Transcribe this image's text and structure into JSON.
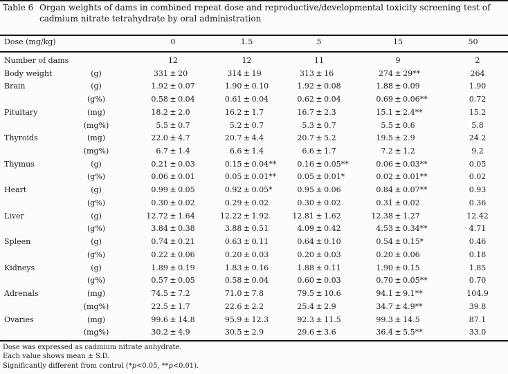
{
  "title": {
    "label": "Table 6",
    "line1": "Organ weights of dams in combined repeat dose and reproductive/developmental toxicity screening test of",
    "line2": "cadmium nitrate tetrahydrate by oral administration"
  },
  "table": {
    "dose_header": "Dose (mg/kg)",
    "pm": "±",
    "doses": [
      "0",
      "1.5",
      "5",
      "15",
      "50"
    ],
    "rows": [
      {
        "label": "Number of dams",
        "unit": "",
        "cells": [
          {
            "v": "12"
          },
          {
            "v": "12"
          },
          {
            "v": "11"
          },
          {
            "v": "9"
          },
          {
            "v": "2"
          }
        ]
      },
      {
        "label": "Body weight",
        "unit": "(g)",
        "cells": [
          {
            "m": "331",
            "s": "20"
          },
          {
            "m": "314",
            "s": "19"
          },
          {
            "m": "313",
            "s": "16"
          },
          {
            "m": "274",
            "s": "29",
            "sig": "**"
          },
          {
            "v": "264"
          }
        ]
      },
      {
        "label": "Brain",
        "unit": "(g)",
        "cells": [
          {
            "m": "1.92",
            "s": "0.07"
          },
          {
            "m": "1.90",
            "s": "0.10"
          },
          {
            "m": "1.92",
            "s": "0.08"
          },
          {
            "m": "1.88",
            "s": "0.09"
          },
          {
            "v": "1.90"
          }
        ]
      },
      {
        "label": "",
        "unit": "(g%)",
        "cells": [
          {
            "m": "0.58",
            "s": "0.04"
          },
          {
            "m": "0.61",
            "s": "0.04"
          },
          {
            "m": "0.62",
            "s": "0.04"
          },
          {
            "m": "0.69",
            "s": "0.06",
            "sig": "**"
          },
          {
            "v": "0.72"
          }
        ]
      },
      {
        "label": "Pituitary",
        "unit": "(mg)",
        "cells": [
          {
            "m": "18.2",
            "s": "2.0"
          },
          {
            "m": "16.2",
            "s": "1.7"
          },
          {
            "m": "16.7",
            "s": "2.3"
          },
          {
            "m": "15.1",
            "s": "2.4",
            "sig": "**"
          },
          {
            "v": "15.2"
          }
        ]
      },
      {
        "label": "",
        "unit": "(mg%)",
        "cells": [
          {
            "m": "5.5",
            "s": "0.7"
          },
          {
            "m": "5.2",
            "s": "0.7"
          },
          {
            "m": "5.3",
            "s": "0.7"
          },
          {
            "m": "5.5",
            "s": "0.6"
          },
          {
            "v": "5.8"
          }
        ]
      },
      {
        "label": "Thyroids",
        "unit": "(mg)",
        "cells": [
          {
            "m": "22.0",
            "s": "4.7"
          },
          {
            "m": "20.7",
            "s": "4.4"
          },
          {
            "m": "20.7",
            "s": "5.2"
          },
          {
            "m": "19.5",
            "s": "2.9"
          },
          {
            "v": "24.2"
          }
        ]
      },
      {
        "label": "",
        "unit": "(mg%)",
        "cells": [
          {
            "m": "6.7",
            "s": "1.4"
          },
          {
            "m": "6.6",
            "s": "1.4"
          },
          {
            "m": "6.6",
            "s": "1.7"
          },
          {
            "m": "7.2",
            "s": "1.2"
          },
          {
            "v": "9.2"
          }
        ]
      },
      {
        "label": "Thymus",
        "unit": "(g)",
        "cells": [
          {
            "m": "0.21",
            "s": "0.03"
          },
          {
            "m": "0.15",
            "s": "0.04",
            "sig": "**"
          },
          {
            "m": "0.16",
            "s": "0.05",
            "sig": "**"
          },
          {
            "m": "0.06",
            "s": "0.03",
            "sig": "**"
          },
          {
            "v": "0.05"
          }
        ]
      },
      {
        "label": "",
        "unit": "(g%)",
        "cells": [
          {
            "m": "0.06",
            "s": "0.01"
          },
          {
            "m": "0.05",
            "s": "0.01",
            "sig": "**"
          },
          {
            "m": "0.05",
            "s": "0.01",
            "sig": "*"
          },
          {
            "m": "0.02",
            "s": "0.01",
            "sig": "**"
          },
          {
            "v": "0.02"
          }
        ]
      },
      {
        "label": "Heart",
        "unit": "(g)",
        "cells": [
          {
            "m": "0.99",
            "s": "0.05"
          },
          {
            "m": "0.92",
            "s": "0.05",
            "sig": "*"
          },
          {
            "m": "0.95",
            "s": "0.06"
          },
          {
            "m": "0.84",
            "s": "0.07",
            "sig": "**"
          },
          {
            "v": "0.93"
          }
        ]
      },
      {
        "label": "",
        "unit": "(g%)",
        "cells": [
          {
            "m": "0.30",
            "s": "0.02"
          },
          {
            "m": "0.29",
            "s": "0.02"
          },
          {
            "m": "0.30",
            "s": "0.02"
          },
          {
            "m": "0.31",
            "s": "0.02"
          },
          {
            "v": "0.36"
          }
        ]
      },
      {
        "label": "Liver",
        "unit": "(g)",
        "cells": [
          {
            "m": "12.72",
            "s": "1.64"
          },
          {
            "m": "12.22",
            "s": "1.92"
          },
          {
            "m": "12.81",
            "s": "1.62"
          },
          {
            "m": "12.38",
            "s": "1.27"
          },
          {
            "v": "12.42"
          }
        ]
      },
      {
        "label": "",
        "unit": "(g%)",
        "cells": [
          {
            "m": "3.84",
            "s": "0.38"
          },
          {
            "m": "3.88",
            "s": "0.51"
          },
          {
            "m": "4.09",
            "s": "0.42"
          },
          {
            "m": "4.53",
            "s": "0.34",
            "sig": "**"
          },
          {
            "v": "4.71"
          }
        ]
      },
      {
        "label": "Spleen",
        "unit": "(g)",
        "cells": [
          {
            "m": "0.74",
            "s": "0.21"
          },
          {
            "m": "0.63",
            "s": "0.11"
          },
          {
            "m": "0.64",
            "s": "0.10"
          },
          {
            "m": "0.54",
            "s": "0.15",
            "sig": "*"
          },
          {
            "v": "0.46"
          }
        ]
      },
      {
        "label": "",
        "unit": "(g%)",
        "cells": [
          {
            "m": "0.22",
            "s": "0.06"
          },
          {
            "m": "0.20",
            "s": "0.03"
          },
          {
            "m": "0.20",
            "s": "0.03"
          },
          {
            "m": "0.20",
            "s": "0.06"
          },
          {
            "v": "0.18"
          }
        ]
      },
      {
        "label": "Kidneys",
        "unit": "(g)",
        "cells": [
          {
            "m": "1.89",
            "s": "0.19"
          },
          {
            "m": "1.83",
            "s": "0.16"
          },
          {
            "m": "1.88",
            "s": "0.11"
          },
          {
            "m": "1.90",
            "s": "0.15"
          },
          {
            "v": "1.85"
          }
        ]
      },
      {
        "label": "",
        "unit": "(g%)",
        "cells": [
          {
            "m": "0.57",
            "s": "0.05"
          },
          {
            "m": "0.58",
            "s": "0.04"
          },
          {
            "m": "0.60",
            "s": "0.03"
          },
          {
            "m": "0.70",
            "s": "0.05",
            "sig": "**"
          },
          {
            "v": "0.70"
          }
        ]
      },
      {
        "label": "Adrenals",
        "unit": "(mg)",
        "cells": [
          {
            "m": "74.5",
            "s": "7.2"
          },
          {
            "m": "71.0",
            "s": "7.8"
          },
          {
            "m": "79.5",
            "s": "10.6"
          },
          {
            "m": "94.1",
            "s": "9.1",
            "sig": "**"
          },
          {
            "v": "104.9"
          }
        ]
      },
      {
        "label": "",
        "unit": "(mg%)",
        "cells": [
          {
            "m": "22.5",
            "s": "1.7"
          },
          {
            "m": "22.6",
            "s": "2.2"
          },
          {
            "m": "25.4",
            "s": "2.9"
          },
          {
            "m": "34.7",
            "s": "4.9",
            "sig": "**"
          },
          {
            "v": "39.8"
          }
        ]
      },
      {
        "label": "Ovaries",
        "unit": "(mg)",
        "cells": [
          {
            "m": "99.6",
            "s": "14.8"
          },
          {
            "m": "95.9",
            "s": "12.3"
          },
          {
            "m": "92.3",
            "s": "11.5"
          },
          {
            "m": "99.3",
            "s": "14.5"
          },
          {
            "v": "87.1"
          }
        ]
      },
      {
        "label": "",
        "unit": "(mg%)",
        "cells": [
          {
            "m": "30.2",
            "s": "4.9"
          },
          {
            "m": "30.5",
            "s": "2.9"
          },
          {
            "m": "29.6",
            "s": "3.6"
          },
          {
            "m": "36.4",
            "s": "5.5",
            "sig": "**"
          },
          {
            "v": "33.0"
          }
        ]
      }
    ]
  },
  "footnotes": {
    "line1": "Dose was expressed as cadmium nitrate anhydrate.",
    "line2": "Each value shows mean ± S.D.",
    "line3_pre": "Significantly different from control (*",
    "line3_p1": "p",
    "line3_seg1": "<0.05, **",
    "line3_p2": "p",
    "line3_seg2": "<0.01)."
  }
}
